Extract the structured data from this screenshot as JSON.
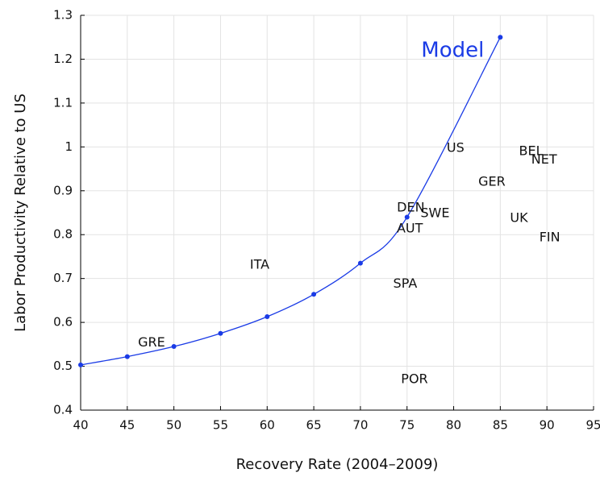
{
  "chart_data": {
    "type": "scatter",
    "xlabel": "Recovery Rate (2004–2009)",
    "ylabel": "Labor Productivity Relative to US",
    "xlim": [
      40,
      95
    ],
    "ylim": [
      0.4,
      1.3
    ],
    "xticks": [
      40,
      45,
      50,
      55,
      60,
      65,
      70,
      75,
      80,
      85,
      90,
      95
    ],
    "yticks": [
      0.4,
      0.5,
      0.6,
      0.7,
      0.8,
      0.9,
      1,
      1.1,
      1.2,
      1.3
    ],
    "grid": true,
    "series": [
      {
        "name": "Model",
        "color": "#1a3be6",
        "x": [
          40,
          45,
          50,
          55,
          60,
          65,
          70,
          75,
          85
        ],
        "values": [
          0.503,
          0.522,
          0.545,
          0.575,
          0.613,
          0.664,
          0.735,
          0.84,
          1.25
        ]
      }
    ],
    "points": [
      {
        "label": "GRE",
        "x": 47.6,
        "y": 0.553
      },
      {
        "label": "ITA",
        "x": 59.2,
        "y": 0.731
      },
      {
        "label": "DEN",
        "x": 75.4,
        "y": 0.861
      },
      {
        "label": "SWE",
        "x": 78.0,
        "y": 0.848
      },
      {
        "label": "AUT",
        "x": 75.3,
        "y": 0.813
      },
      {
        "label": "SPA",
        "x": 74.8,
        "y": 0.687
      },
      {
        "label": "POR",
        "x": 75.8,
        "y": 0.47
      },
      {
        "label": "US",
        "x": 80.2,
        "y": 0.997
      },
      {
        "label": "GER",
        "x": 84.1,
        "y": 0.92
      },
      {
        "label": "BEL",
        "x": 88.3,
        "y": 0.99
      },
      {
        "label": "NET",
        "x": 89.7,
        "y": 0.97
      },
      {
        "label": "UK",
        "x": 87.0,
        "y": 0.837
      },
      {
        "label": "FIN",
        "x": 90.3,
        "y": 0.793
      }
    ]
  }
}
